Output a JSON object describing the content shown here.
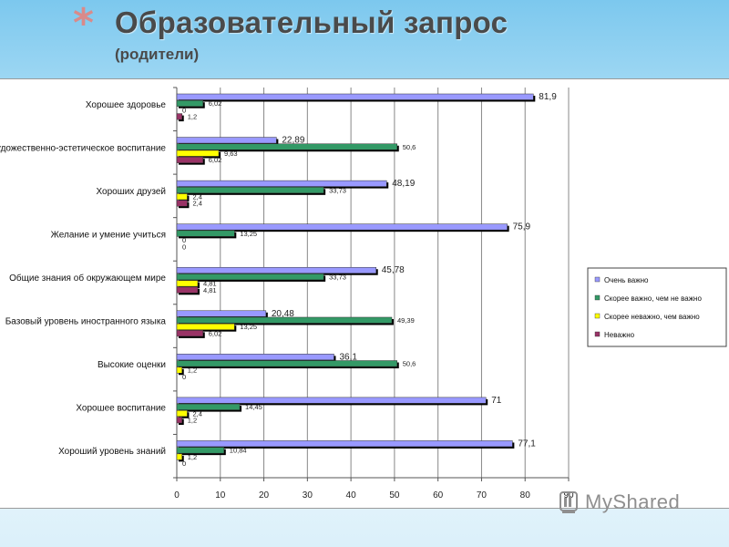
{
  "slide": {
    "title": "Образовательный запрос",
    "subtitle": "(родители)",
    "watermark": "MyShared"
  },
  "chart_data": {
    "type": "bar",
    "orientation": "horizontal",
    "categories": [
      "Хорошее здоровье",
      "Художественно-эстетическое воспитание",
      "Хороших друзей",
      "Желание и умение учиться",
      "Общие знания об окружающем мире",
      "Базовый уровень иностранного языка",
      "Высокие оценки",
      "Хорошее воспитание",
      "Хороший уровень знаний"
    ],
    "series": [
      {
        "name": "Очень важно",
        "color": "#9999ff",
        "values": [
          81.9,
          22.89,
          48.19,
          75.9,
          45.78,
          20.48,
          36.1,
          71,
          77.1
        ],
        "labels": [
          "81,9",
          "22,89",
          "48,19",
          "75,9",
          "45,78",
          "20,48",
          "36,1",
          "71",
          "77,1"
        ]
      },
      {
        "name": "Скорее важно, чем не важно",
        "color": "#339966",
        "values": [
          6.02,
          50.6,
          33.73,
          13.25,
          33.73,
          49.39,
          50.6,
          14.45,
          10.84
        ],
        "labels": [
          "6,02",
          "50,6",
          "33,73",
          "13,25",
          "33,73",
          "49,39",
          "50,6",
          "14,45",
          "10,84"
        ]
      },
      {
        "name": "Скорее неважно, чем важно",
        "color": "#ffff00",
        "values": [
          0,
          9.63,
          2.4,
          0,
          4.81,
          13.25,
          1.2,
          2.4,
          1.2
        ],
        "labels": [
          "0",
          "9,63",
          "2,4",
          "0",
          "4,81",
          "13,25",
          "1,2",
          "2,4",
          "1,2"
        ]
      },
      {
        "name": "Неважно",
        "color": "#993366",
        "values": [
          1.2,
          6.02,
          2.4,
          0,
          4.81,
          6.02,
          0,
          1.2,
          0
        ],
        "labels": [
          "1,2",
          "6,02",
          "2,4",
          "0",
          "4,81",
          "6,02",
          "0",
          "1,2",
          "0"
        ]
      }
    ],
    "xlim": [
      0,
      90
    ],
    "xticks": [
      "0",
      "10",
      "20",
      "30",
      "40",
      "50",
      "60",
      "70",
      "80",
      "90"
    ],
    "grid": true,
    "legend": "right"
  }
}
